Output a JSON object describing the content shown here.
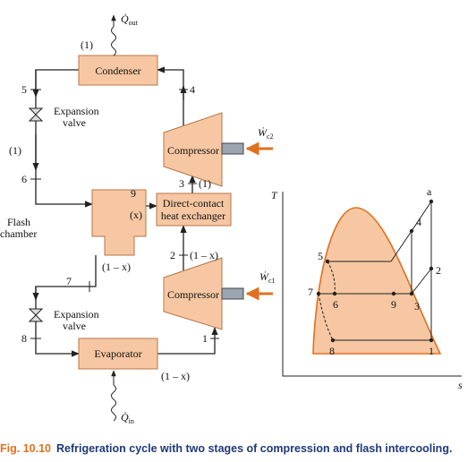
{
  "schematic": {
    "condenser": "Condenser",
    "evaporator": "Evaporator",
    "heat_exchanger": [
      "Direct-contact",
      "heat exchanger"
    ],
    "flash_chamber": [
      "Flash",
      "chamber"
    ],
    "expansion_valves": [
      [
        "Expansion",
        "valve"
      ],
      [
        "Expansion",
        "valve"
      ]
    ],
    "compressors": [
      "Compressor",
      "Compressor"
    ],
    "heat_out": {
      "symbol": "Q̇",
      "subscript": "out"
    },
    "heat_in": {
      "symbol": "Q̇",
      "subscript": "in"
    },
    "work": [
      {
        "symbol": "Ẇ",
        "subscript": "c2"
      },
      {
        "symbol": "Ẇ",
        "subscript": "c1"
      }
    ],
    "state_labels": [
      "5",
      "4",
      "6",
      "3",
      "9",
      "2",
      "7",
      "8",
      "1"
    ],
    "flow_labels": [
      "(1)",
      "(1)",
      "(1)",
      "(x)",
      "(1 – x)",
      "(1 – x)",
      "(1 – x)"
    ]
  },
  "ts_diagram": {
    "y_axis_label": "T",
    "x_axis_label": "s",
    "points": [
      "a",
      "4",
      "2",
      "3",
      "5",
      "6",
      "7",
      "9",
      "8",
      "1"
    ]
  },
  "caption": {
    "figure_number": "Fig. 10.10",
    "text": "Refrigeration cycle with two stages of compression and flash intercooling."
  }
}
